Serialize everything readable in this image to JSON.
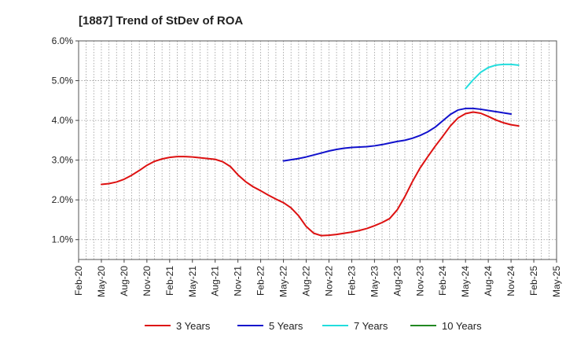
{
  "chart_data": {
    "type": "line",
    "title": "[1887]  Trend of StDev of ROA",
    "xlabel": "",
    "ylabel": "",
    "x_ticks": [
      "Feb-20",
      "May-20",
      "Aug-20",
      "Nov-20",
      "Feb-21",
      "May-21",
      "Aug-21",
      "Nov-21",
      "Feb-22",
      "May-22",
      "Aug-22",
      "Nov-22",
      "Feb-23",
      "May-23",
      "Aug-23",
      "Nov-23",
      "Feb-24",
      "May-24",
      "Aug-24",
      "Nov-24",
      "Feb-25",
      "May-25"
    ],
    "y_ticks": [
      "1.0%",
      "2.0%",
      "3.0%",
      "4.0%",
      "5.0%",
      "6.0%"
    ],
    "ylim": [
      0.5,
      6.0
    ],
    "grid": true,
    "legend_position": "bottom",
    "series": [
      {
        "name": "3 Years",
        "color": "#dd1111",
        "points": [
          [
            "May-20",
            2.39
          ],
          [
            "Jun-20",
            2.41
          ],
          [
            "Jul-20",
            2.45
          ],
          [
            "Aug-20",
            2.52
          ],
          [
            "Sep-20",
            2.62
          ],
          [
            "Oct-20",
            2.74
          ],
          [
            "Nov-20",
            2.87
          ],
          [
            "Dec-20",
            2.97
          ],
          [
            "Jan-21",
            3.03
          ],
          [
            "Feb-21",
            3.07
          ],
          [
            "Mar-21",
            3.09
          ],
          [
            "Apr-21",
            3.09
          ],
          [
            "May-21",
            3.08
          ],
          [
            "Jun-21",
            3.06
          ],
          [
            "Jul-21",
            3.04
          ],
          [
            "Aug-21",
            3.02
          ],
          [
            "Sep-21",
            2.96
          ],
          [
            "Oct-21",
            2.84
          ],
          [
            "Nov-21",
            2.63
          ],
          [
            "Dec-21",
            2.46
          ],
          [
            "Jan-22",
            2.33
          ],
          [
            "Feb-22",
            2.23
          ],
          [
            "Mar-22",
            2.12
          ],
          [
            "Apr-22",
            2.02
          ],
          [
            "May-22",
            1.93
          ],
          [
            "Jun-22",
            1.8
          ],
          [
            "Jul-22",
            1.6
          ],
          [
            "Aug-22",
            1.33
          ],
          [
            "Sep-22",
            1.16
          ],
          [
            "Oct-22",
            1.1
          ],
          [
            "Nov-22",
            1.11
          ],
          [
            "Dec-22",
            1.13
          ],
          [
            "Jan-23",
            1.16
          ],
          [
            "Feb-23",
            1.19
          ],
          [
            "Mar-23",
            1.23
          ],
          [
            "Apr-23",
            1.28
          ],
          [
            "May-23",
            1.35
          ],
          [
            "Jun-23",
            1.43
          ],
          [
            "Jul-23",
            1.53
          ],
          [
            "Aug-23",
            1.75
          ],
          [
            "Sep-23",
            2.08
          ],
          [
            "Oct-23",
            2.46
          ],
          [
            "Nov-23",
            2.8
          ],
          [
            "Dec-23",
            3.08
          ],
          [
            "Jan-24",
            3.35
          ],
          [
            "Feb-24",
            3.6
          ],
          [
            "Mar-24",
            3.86
          ],
          [
            "Apr-24",
            4.06
          ],
          [
            "May-24",
            4.17
          ],
          [
            "Jun-24",
            4.21
          ],
          [
            "Jul-24",
            4.18
          ],
          [
            "Aug-24",
            4.1
          ],
          [
            "Sep-24",
            4.01
          ],
          [
            "Oct-24",
            3.94
          ],
          [
            "Nov-24",
            3.89
          ],
          [
            "Dec-24",
            3.86
          ]
        ]
      },
      {
        "name": "5 Years",
        "color": "#1111cc",
        "points": [
          [
            "May-22",
            2.98
          ],
          [
            "Jun-22",
            3.01
          ],
          [
            "Jul-22",
            3.04
          ],
          [
            "Aug-22",
            3.08
          ],
          [
            "Sep-22",
            3.13
          ],
          [
            "Oct-22",
            3.18
          ],
          [
            "Nov-22",
            3.23
          ],
          [
            "Dec-22",
            3.27
          ],
          [
            "Jan-23",
            3.3
          ],
          [
            "Feb-23",
            3.32
          ],
          [
            "Mar-23",
            3.33
          ],
          [
            "Apr-23",
            3.34
          ],
          [
            "May-23",
            3.36
          ],
          [
            "Jun-23",
            3.39
          ],
          [
            "Jul-23",
            3.43
          ],
          [
            "Aug-23",
            3.47
          ],
          [
            "Sep-23",
            3.5
          ],
          [
            "Oct-23",
            3.55
          ],
          [
            "Nov-23",
            3.62
          ],
          [
            "Dec-23",
            3.71
          ],
          [
            "Jan-24",
            3.83
          ],
          [
            "Feb-24",
            3.99
          ],
          [
            "Mar-24",
            4.15
          ],
          [
            "Apr-24",
            4.26
          ],
          [
            "May-24",
            4.3
          ],
          [
            "Jun-24",
            4.3
          ],
          [
            "Jul-24",
            4.28
          ],
          [
            "Aug-24",
            4.25
          ],
          [
            "Sep-24",
            4.22
          ],
          [
            "Oct-24",
            4.19
          ],
          [
            "Nov-24",
            4.16
          ]
        ]
      },
      {
        "name": "7 Years",
        "color": "#22dddd",
        "points": [
          [
            "May-24",
            4.8
          ],
          [
            "Jun-24",
            5.02
          ],
          [
            "Jul-24",
            5.21
          ],
          [
            "Aug-24",
            5.33
          ],
          [
            "Sep-24",
            5.39
          ],
          [
            "Oct-24",
            5.41
          ],
          [
            "Nov-24",
            5.41
          ],
          [
            "Dec-24",
            5.39
          ]
        ]
      },
      {
        "name": "10 Years",
        "color": "#228822",
        "points": []
      }
    ]
  }
}
